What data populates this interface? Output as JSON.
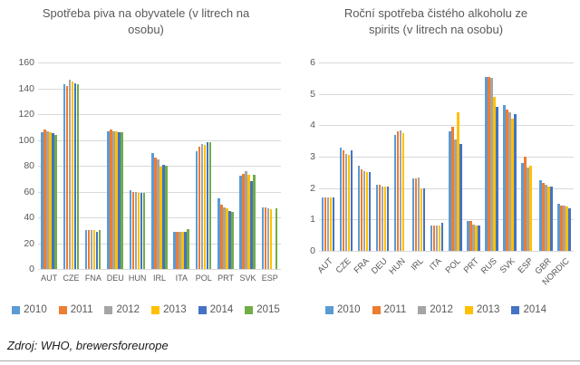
{
  "chart_data": [
    {
      "type": "bar",
      "title": "Spotřeba piva na obyvatele (v litrech na osobu)",
      "y_axis": {
        "min": 0,
        "max": 160,
        "step": 20
      },
      "legend_position": "bottom",
      "grid": true,
      "categories": [
        "AUT",
        "CZE",
        "FNA",
        "DEU",
        "HUN",
        "IRL",
        "ITA",
        "POL",
        "PRT",
        "SVK",
        "ESP"
      ],
      "series": [
        {
          "name": "2010",
          "color": "#5B9BD5",
          "values": [
            106,
            143,
            30,
            107,
            61,
            90,
            29,
            91,
            55,
            72,
            48
          ]
        },
        {
          "name": "2011",
          "color": "#ED7D31",
          "values": [
            108,
            142,
            30,
            108,
            60,
            86,
            29,
            95,
            50,
            74,
            48
          ]
        },
        {
          "name": "2012",
          "color": "#A5A5A5",
          "values": [
            107,
            147,
            30,
            107,
            60,
            85,
            29,
            97,
            48,
            76,
            47
          ]
        },
        {
          "name": "2013",
          "color": "#FFC000",
          "values": [
            106,
            145,
            30,
            107,
            59,
            79,
            29,
            96,
            47,
            73,
            46
          ]
        },
        {
          "name": "2014",
          "color": "#4472C4",
          "values": [
            105,
            144,
            29,
            106,
            59,
            81,
            29,
            98,
            45,
            68,
            null
          ]
        },
        {
          "name": "2015",
          "color": "#70AD47",
          "values": [
            104,
            143,
            30,
            106,
            59,
            80,
            31,
            98,
            44,
            73,
            47
          ]
        }
      ]
    },
    {
      "type": "bar",
      "title": "Roční spotřeba čistého alkoholu ze spirits (v litrech na osobu)",
      "y_axis": {
        "min": 0,
        "max": 6,
        "step": 1
      },
      "legend_position": "bottom",
      "grid": true,
      "categories": [
        "AUT",
        "CZE",
        "FRA",
        "DEU",
        "HUN",
        "IRL",
        "ITA",
        "POL",
        "PRT",
        "RUS",
        "SVK",
        "ESP",
        "GBR",
        "NORDIC"
      ],
      "series": [
        {
          "name": "2010",
          "color": "#5B9BD5",
          "values": [
            1.7,
            3.3,
            2.7,
            2.1,
            3.7,
            2.3,
            0.8,
            3.8,
            0.95,
            5.55,
            4.65,
            2.8,
            2.25,
            1.5
          ]
        },
        {
          "name": "2011",
          "color": "#ED7D31",
          "values": [
            1.7,
            3.2,
            2.6,
            2.1,
            3.8,
            2.3,
            0.8,
            3.95,
            0.95,
            5.55,
            4.5,
            3.0,
            2.15,
            1.45
          ]
        },
        {
          "name": "2012",
          "color": "#A5A5A5",
          "values": [
            1.7,
            3.1,
            2.55,
            2.05,
            3.85,
            2.35,
            0.8,
            3.55,
            0.85,
            5.5,
            4.4,
            2.65,
            2.1,
            1.45
          ]
        },
        {
          "name": "2013",
          "color": "#FFC000",
          "values": [
            1.7,
            3.05,
            2.5,
            2.05,
            3.75,
            2.0,
            0.8,
            4.4,
            0.8,
            4.9,
            4.2,
            2.7,
            2.05,
            1.4
          ]
        },
        {
          "name": "2014",
          "color": "#4472C4",
          "values": [
            1.7,
            3.2,
            2.5,
            2.05,
            null,
            2.0,
            0.9,
            3.4,
            0.8,
            4.6,
            4.35,
            null,
            2.05,
            1.35
          ]
        }
      ]
    }
  ],
  "footer": {
    "source": "Zdroj: WHO, brewersforeurope"
  }
}
